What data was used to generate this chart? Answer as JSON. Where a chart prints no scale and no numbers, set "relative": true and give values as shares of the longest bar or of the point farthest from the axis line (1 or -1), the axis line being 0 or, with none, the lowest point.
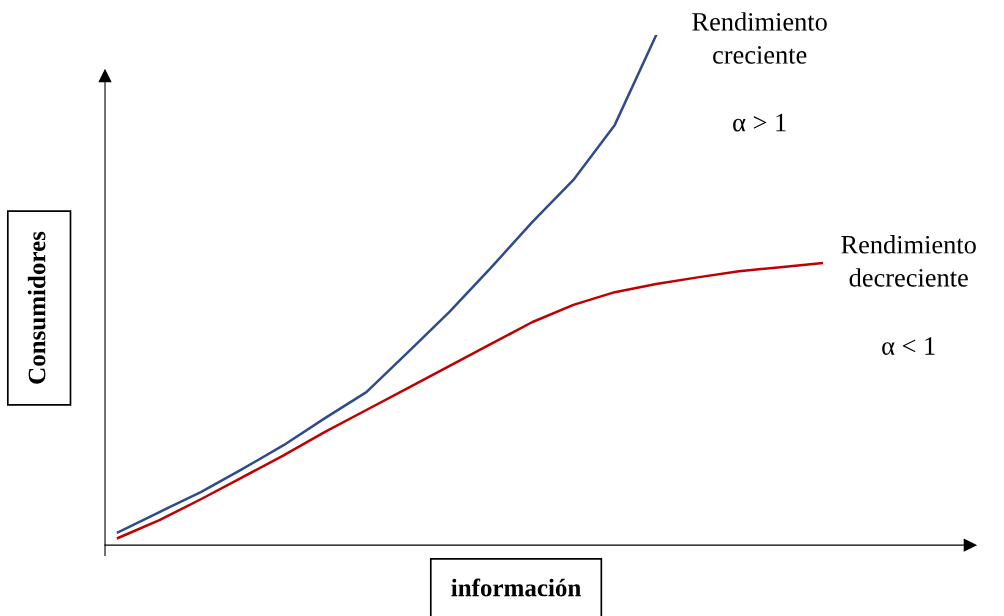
{
  "chart_data": {
    "type": "line",
    "relative": true,
    "xlabel": "información",
    "ylabel": "Consumidores",
    "categories": [
      null,
      null,
      null,
      null,
      null,
      null,
      null,
      null,
      null,
      null,
      null,
      null,
      null,
      null,
      null,
      null,
      null,
      null
    ],
    "series": [
      {
        "name": "Rendimiento creciente",
        "color": "#2f4b8c",
        "values": [
          0.025,
          0.065,
          0.104,
          0.149,
          0.196,
          0.249,
          0.3,
          0.378,
          0.457,
          0.543,
          0.633,
          0.716,
          0.824,
          1.0,
          null,
          null,
          null,
          null
        ]
      },
      {
        "name": "Rendimiento decreciente",
        "color": "#c00000",
        "values": [
          0.014,
          0.049,
          0.09,
          0.133,
          0.176,
          0.222,
          0.265,
          0.308,
          0.351,
          0.394,
          0.437,
          0.471,
          0.496,
          0.512,
          0.525,
          0.537,
          0.545,
          0.553
        ]
      }
    ],
    "annotations": [
      "α > 1",
      "α < 1"
    ],
    "marker": "none",
    "line_style": "solid"
  }
}
